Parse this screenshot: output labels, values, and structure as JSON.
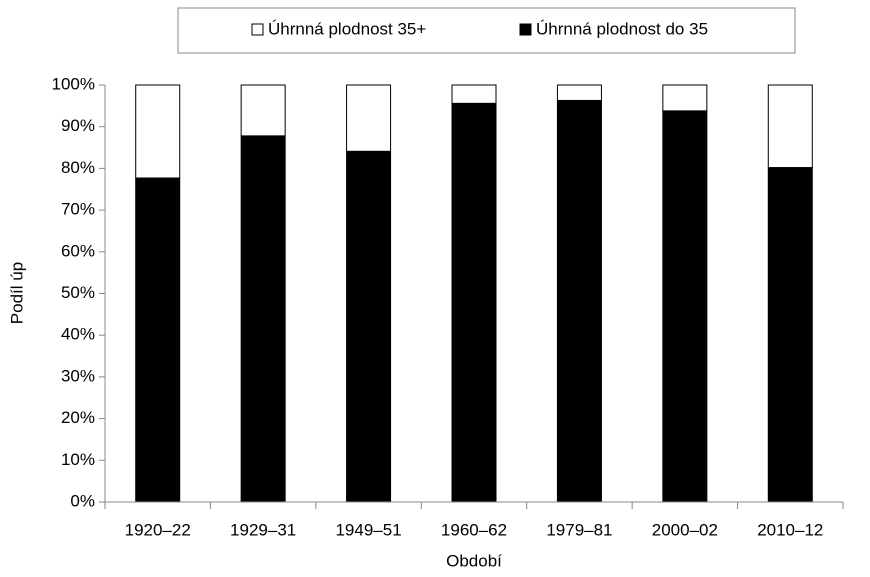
{
  "chart_data": {
    "type": "stacked_bar",
    "categories": [
      "1920–22",
      "1929–31",
      "1949–51",
      "1960–62",
      "1979–81",
      "2000–02",
      "2010–12"
    ],
    "series": [
      {
        "name": "Úhrnná plodnost 35+",
        "color": "#ffffff",
        "values": [
          22.3,
          12.2,
          15.9,
          4.4,
          3.7,
          6.2,
          19.8
        ]
      },
      {
        "name": "Úhrnná plodnost do 35",
        "color": "#000000",
        "values": [
          77.7,
          87.8,
          84.1,
          95.6,
          96.3,
          93.8,
          80.2
        ]
      }
    ],
    "ylabel": "Podíl úp",
    "xlabel": "Období",
    "ylim": [
      0,
      100
    ],
    "yticks": [
      {
        "value": 0,
        "label": "0%"
      },
      {
        "value": 10,
        "label": "10%"
      },
      {
        "value": 20,
        "label": "20%"
      },
      {
        "value": 30,
        "label": "30%"
      },
      {
        "value": 40,
        "label": "40%"
      },
      {
        "value": 50,
        "label": "50%"
      },
      {
        "value": 60,
        "label": "60%"
      },
      {
        "value": 70,
        "label": "70%"
      },
      {
        "value": 80,
        "label": "80%"
      },
      {
        "value": 90,
        "label": "90%"
      },
      {
        "value": 100,
        "label": "100%"
      }
    ],
    "legend": "top",
    "grid": false
  }
}
